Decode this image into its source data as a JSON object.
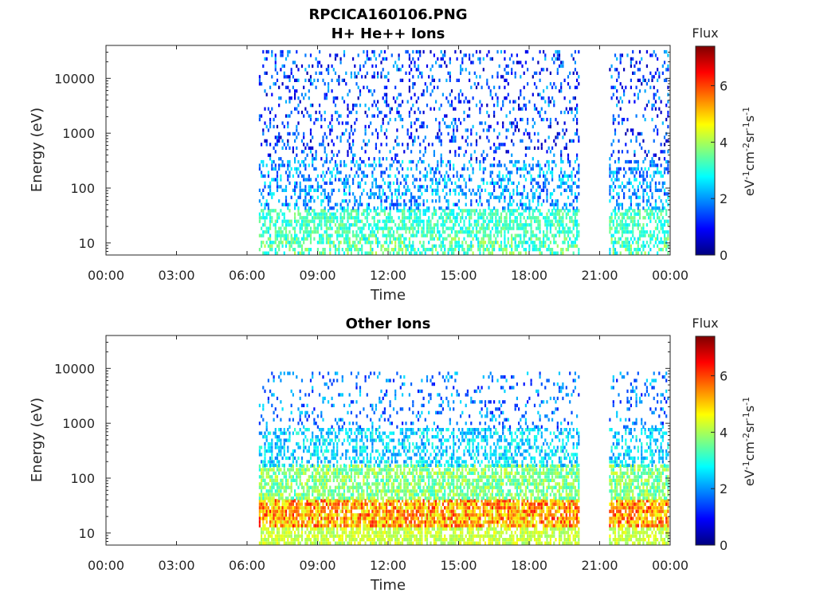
{
  "chart_data": {
    "title": "RPCICA160106.PNG",
    "panels": [
      {
        "type": "heatmap",
        "title": "H+ He++ Ions",
        "xlabel": "Time",
        "ylabel": "Energy (eV)",
        "x_ticks": [
          "00:00",
          "03:00",
          "06:00",
          "09:00",
          "12:00",
          "15:00",
          "18:00",
          "21:00",
          "00:00"
        ],
        "x_range_hours": [
          0,
          24
        ],
        "y_ticks": [
          "10",
          "100",
          "1000",
          "10000"
        ],
        "y_log_range": [
          0.78,
          4.6
        ],
        "y_scale": "log",
        "colorbar": {
          "title": "Flux",
          "label": "eV-1cm-2sr-1s-1",
          "ticks": [
            "0",
            "2",
            "4",
            "6"
          ],
          "range": [
            0,
            7.4
          ]
        },
        "data_segments_hours": [
          [
            6.5,
            20.1
          ],
          [
            21.4,
            23.9
          ]
        ],
        "description_bands": [
          {
            "log_e_min": 0.78,
            "log_e_max": 1.1,
            "flux_min": 2.5,
            "flux_max": 4.2,
            "density": 0.55
          },
          {
            "log_e_min": 1.1,
            "log_e_max": 1.6,
            "flux_min": 2.6,
            "flux_max": 3.8,
            "density": 0.6
          },
          {
            "log_e_min": 1.6,
            "log_e_max": 2.5,
            "flux_min": 1.2,
            "flux_max": 2.9,
            "density": 0.35
          },
          {
            "log_e_min": 2.5,
            "log_e_max": 4.5,
            "flux_min": 0.3,
            "flux_max": 2.4,
            "density": 0.18
          }
        ]
      },
      {
        "type": "heatmap",
        "title": "Other Ions",
        "xlabel": "Time",
        "ylabel": "Energy (eV)",
        "x_ticks": [
          "00:00",
          "03:00",
          "06:00",
          "09:00",
          "12:00",
          "15:00",
          "18:00",
          "21:00",
          "00:00"
        ],
        "x_range_hours": [
          0,
          24
        ],
        "y_ticks": [
          "10",
          "100",
          "1000",
          "10000"
        ],
        "y_log_range": [
          0.78,
          4.6
        ],
        "y_scale": "log",
        "colorbar": {
          "title": "Flux",
          "label": "eV-1cm-2sr-1s-1",
          "ticks": [
            "0",
            "2",
            "4",
            "6"
          ],
          "range": [
            0,
            7.4
          ]
        },
        "data_segments_hours": [
          [
            6.5,
            20.1
          ],
          [
            21.4,
            23.9
          ]
        ],
        "description_bands": [
          {
            "log_e_min": 0.78,
            "log_e_max": 1.1,
            "flux_min": 3.8,
            "flux_max": 4.6,
            "density": 0.7
          },
          {
            "log_e_min": 1.1,
            "log_e_max": 1.6,
            "flux_min": 4.2,
            "flux_max": 6.4,
            "density": 0.85
          },
          {
            "log_e_min": 1.6,
            "log_e_max": 2.2,
            "flux_min": 3.0,
            "flux_max": 4.4,
            "density": 0.7
          },
          {
            "log_e_min": 2.2,
            "log_e_max": 2.9,
            "flux_min": 1.8,
            "flux_max": 3.2,
            "density": 0.45
          },
          {
            "log_e_min": 2.9,
            "log_e_max": 3.9,
            "flux_min": 1.0,
            "flux_max": 2.6,
            "density": 0.15
          }
        ]
      }
    ]
  }
}
